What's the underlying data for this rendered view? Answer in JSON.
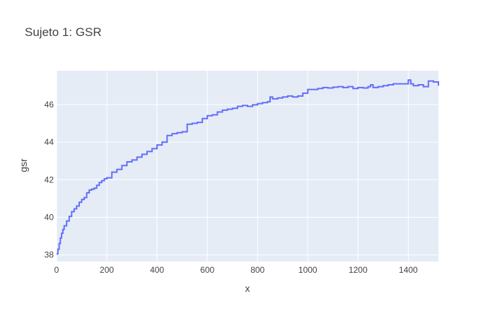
{
  "chart_data": {
    "type": "line",
    "title": "Sujeto 1: GSR",
    "xlabel": "x",
    "ylabel": "gsr",
    "xlim": [
      0,
      1520
    ],
    "ylim": [
      37.65,
      47.8
    ],
    "x_ticks": [
      0,
      200,
      400,
      600,
      800,
      1000,
      1200,
      1400
    ],
    "y_ticks": [
      38,
      40,
      42,
      44,
      46
    ],
    "grid": true,
    "legend": "none",
    "colors": {
      "line": "#636efa",
      "plot_bg": "#e5ecf6",
      "grid": "#ffffff",
      "text": "#444444"
    },
    "series": [
      {
        "values_shape": "step",
        "x": [
          0,
          5,
          10,
          15,
          20,
          25,
          30,
          40,
          50,
          60,
          70,
          80,
          90,
          100,
          110,
          120,
          130,
          140,
          150,
          160,
          170,
          180,
          190,
          200,
          220,
          240,
          260,
          280,
          300,
          320,
          340,
          360,
          380,
          400,
          420,
          440,
          460,
          480,
          500,
          520,
          540,
          560,
          580,
          600,
          620,
          640,
          660,
          680,
          700,
          720,
          740,
          760,
          780,
          800,
          820,
          840,
          850,
          860,
          880,
          900,
          920,
          940,
          960,
          980,
          1000,
          1020,
          1040,
          1060,
          1080,
          1100,
          1120,
          1140,
          1160,
          1180,
          1200,
          1220,
          1240,
          1250,
          1260,
          1280,
          1300,
          1320,
          1340,
          1360,
          1380,
          1400,
          1410,
          1420,
          1440,
          1460,
          1480,
          1500,
          1520
        ],
        "y": [
          38.05,
          38.3,
          38.6,
          38.9,
          39.15,
          39.35,
          39.55,
          39.8,
          40.05,
          40.3,
          40.45,
          40.6,
          40.8,
          40.95,
          41.05,
          41.3,
          41.45,
          41.5,
          41.55,
          41.7,
          41.85,
          41.95,
          42.05,
          42.1,
          42.4,
          42.55,
          42.75,
          42.95,
          43.05,
          43.2,
          43.35,
          43.5,
          43.65,
          43.85,
          44.0,
          44.35,
          44.45,
          44.5,
          44.55,
          44.95,
          45.0,
          45.05,
          45.25,
          45.4,
          45.45,
          45.6,
          45.7,
          45.75,
          45.8,
          45.9,
          45.95,
          45.9,
          45.98,
          46.05,
          46.1,
          46.15,
          46.4,
          46.3,
          46.35,
          46.4,
          46.45,
          46.4,
          46.45,
          46.6,
          46.8,
          46.8,
          46.85,
          46.9,
          46.88,
          46.92,
          46.95,
          46.9,
          46.95,
          46.85,
          46.9,
          46.88,
          46.95,
          47.05,
          46.9,
          46.95,
          47.0,
          47.05,
          47.1,
          47.1,
          47.1,
          47.3,
          47.1,
          47.0,
          47.05,
          46.95,
          47.25,
          47.2,
          47.0
        ]
      }
    ]
  }
}
